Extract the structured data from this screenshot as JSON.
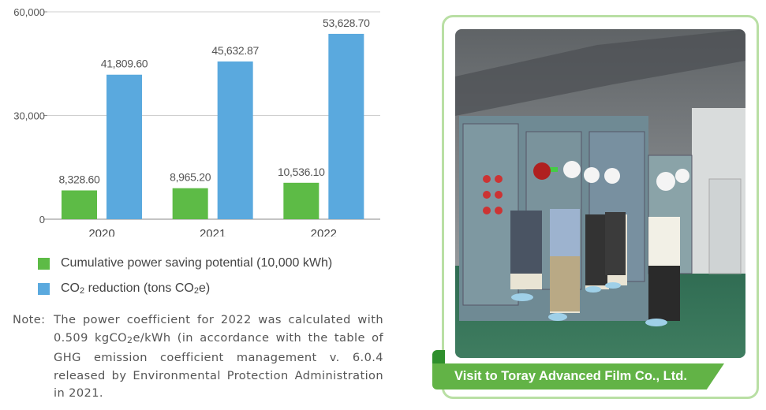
{
  "chart_data": {
    "type": "bar",
    "categories": [
      "2020",
      "2021",
      "2022"
    ],
    "series": [
      {
        "name": "Cumulative power saving potential (10,000 kWh)",
        "values": [
          8328.6,
          8965.2,
          10536.1
        ],
        "labels": [
          "8,328.60",
          "8,965.20",
          "10,536.10"
        ],
        "color": "#5dbb46"
      },
      {
        "name": "CO2 reduction (tons CO2e)",
        "values": [
          41809.6,
          45632.87,
          53628.7
        ],
        "labels": [
          "41,809.60",
          "45,632.87",
          "53,628.70"
        ],
        "color": "#5aa9de"
      }
    ],
    "yticks": [
      0,
      30000,
      60000
    ],
    "ytick_labels": [
      "0",
      "30,000",
      "60,000"
    ],
    "ylim": [
      0,
      60000
    ],
    "grid": true,
    "legend_position": "bottom"
  },
  "legend": {
    "item1": "Cumulative power saving potential (10,000 kWh)",
    "item2_prefix": "CO",
    "item2_sub1": "2",
    "item2_mid": " reduction (tons CO",
    "item2_sub2": "2",
    "item2_suffix": "e)"
  },
  "note": {
    "head": "Note:",
    "line1a": "The power coefficient for 2022 was calculated with 0.509 kgCO",
    "line1_sub": "2",
    "line1b": "e/kWh (in accordance with the table of GHG emission coefficient management v. 6.0.4 released by Environmental Protection Administration in 2021."
  },
  "photo": {
    "caption": "Visit to Toray Advanced Film Co., Ltd.",
    "frame_color": "#b9dfa4",
    "caption_color": "#62b346"
  }
}
